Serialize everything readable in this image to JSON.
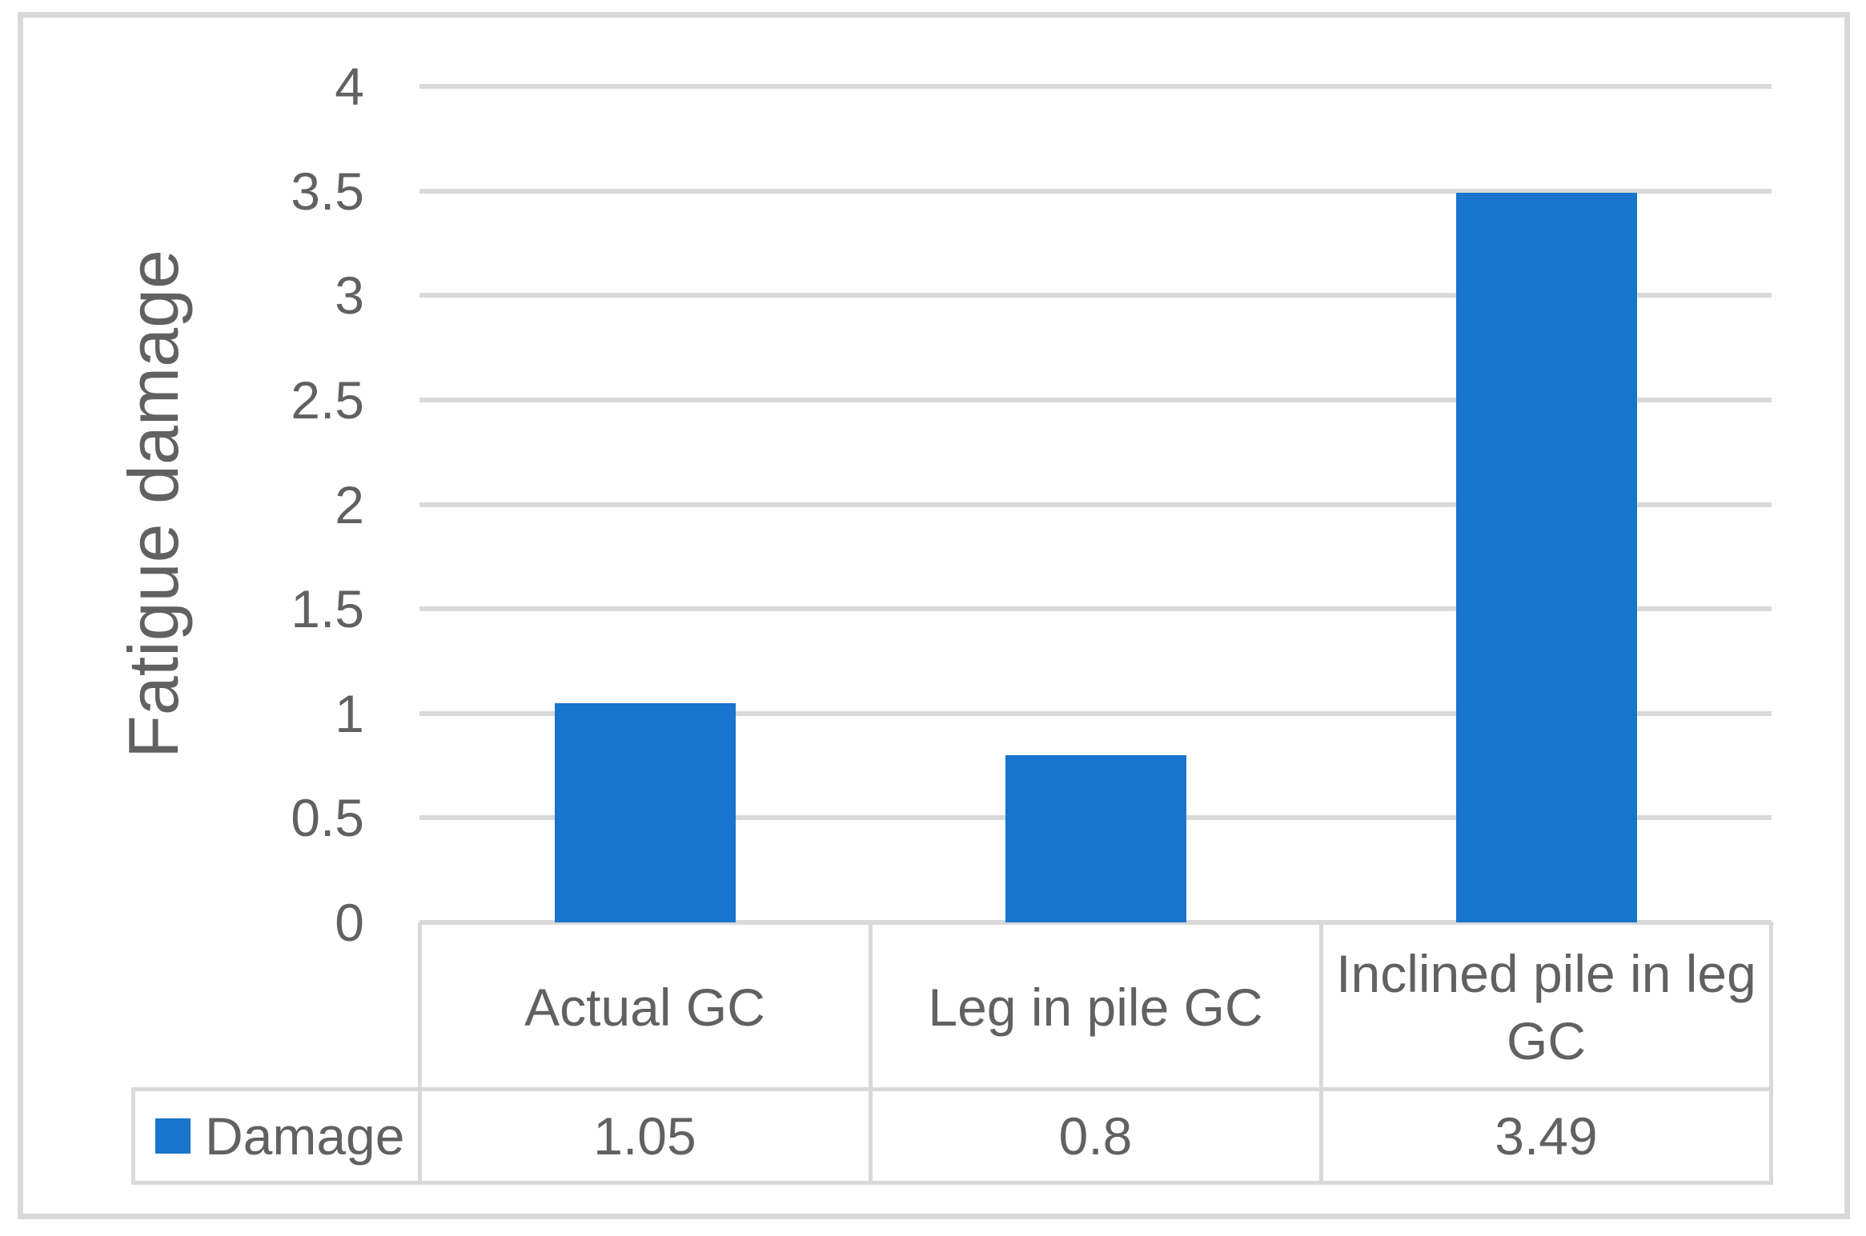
{
  "chart_data": {
    "type": "bar",
    "title": "",
    "categories": [
      "Actual GC",
      "Leg in pile GC",
      "Inclined pile in leg GC"
    ],
    "series": [
      {
        "name": "Damage",
        "values": [
          1.05,
          0.8,
          3.49
        ]
      }
    ],
    "ylabel": "Fatigue damage",
    "xlabel": "",
    "ylim": [
      0,
      4
    ],
    "ytick_step": 0.5,
    "yticks": [
      "0",
      "0.5",
      "1",
      "1.5",
      "2",
      "2.5",
      "3",
      "3.5",
      "4"
    ],
    "grid": true,
    "legend_position": "data-table-left",
    "colors": {
      "bar": "#1874cc",
      "gridline": "#d9d9d9",
      "table_border": "#d9d9d9",
      "frame_border": "#d9d9d9",
      "text": "#616161"
    }
  },
  "data_table": {
    "legend_label": "Damage",
    "columns": [
      "Actual GC",
      "Leg in pile GC",
      "Inclined pile in leg GC"
    ],
    "values": [
      "1.05",
      "0.8",
      "3.49"
    ]
  }
}
